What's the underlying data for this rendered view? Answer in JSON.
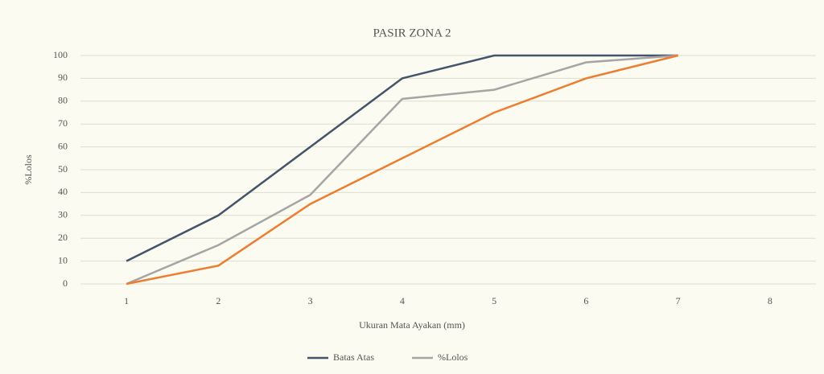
{
  "chart_data": {
    "type": "line",
    "title": "PASIR ZONA 2",
    "x_label": "Ukuran Mata Ayakan (mm)",
    "y_label": "%Lolos",
    "categories": [
      "1",
      "2",
      "3",
      "4",
      "5",
      "6",
      "7",
      "8"
    ],
    "series": [
      {
        "name": "Batas Atas",
        "color": "#44546a",
        "values": [
          10,
          30,
          60,
          90,
          100,
          100,
          100,
          null
        ]
      },
      {
        "name": "%Lolos",
        "color": "#a5a5a5",
        "values": [
          0,
          17,
          39,
          81,
          85,
          97,
          100,
          null
        ]
      },
      {
        "color": "#ed7d31",
        "values": [
          0,
          8,
          35,
          55,
          75,
          90,
          100,
          null
        ]
      }
    ],
    "ylim": [
      0,
      100
    ],
    "yticks": [
      0,
      10,
      20,
      30,
      40,
      50,
      60,
      70,
      80,
      90,
      100
    ],
    "grid": true
  }
}
